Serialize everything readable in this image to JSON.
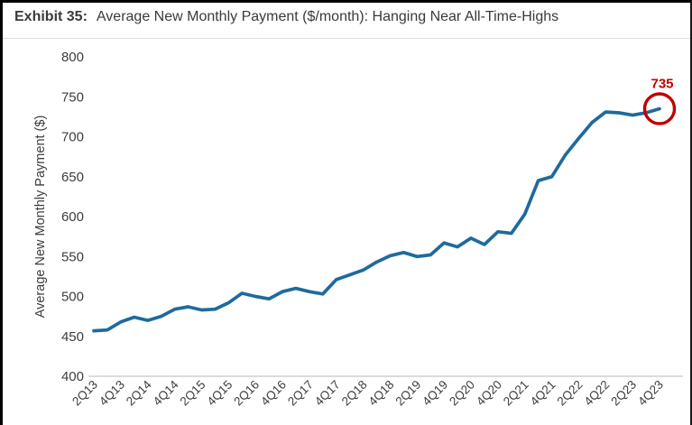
{
  "header": {
    "exhibit_label": "Exhibit 35:",
    "title_text": "Average New Monthly Payment ($/month): Hanging Near All-Time-Highs"
  },
  "colors": {
    "line": "#1e6a9e",
    "annotation_red": "#c00000",
    "axis_line": "#cfcfcf",
    "tick_text": "#3d3d3d"
  },
  "chart_data": {
    "type": "line",
    "title": "Average New Monthly Payment ($/month): Hanging Near All-Time-Highs",
    "xlabel": "",
    "ylabel": "Average New Monthly Payment ($)",
    "ylim": [
      400,
      800
    ],
    "grid": false,
    "legend": "none",
    "y_ticks": [
      400,
      450,
      500,
      550,
      600,
      650,
      700,
      750,
      800
    ],
    "x_tick_labels": [
      "2Q13",
      "4Q13",
      "2Q14",
      "4Q14",
      "2Q15",
      "4Q15",
      "2Q16",
      "4Q16",
      "2Q17",
      "4Q17",
      "2Q18",
      "4Q18",
      "2Q19",
      "4Q19",
      "2Q20",
      "4Q20",
      "2Q21",
      "4Q21",
      "2Q22",
      "4Q22",
      "2Q23",
      "4Q23"
    ],
    "categories": [
      "2Q13",
      "3Q13",
      "4Q13",
      "1Q14",
      "2Q14",
      "3Q14",
      "4Q14",
      "1Q15",
      "2Q15",
      "3Q15",
      "4Q15",
      "1Q16",
      "2Q16",
      "3Q16",
      "4Q16",
      "1Q17",
      "2Q17",
      "3Q17",
      "4Q17",
      "1Q18",
      "2Q18",
      "3Q18",
      "4Q18",
      "1Q19",
      "2Q19",
      "3Q19",
      "4Q19",
      "1Q20",
      "2Q20",
      "3Q20",
      "4Q20",
      "1Q21",
      "2Q21",
      "3Q21",
      "4Q21",
      "1Q22",
      "2Q22",
      "3Q22",
      "4Q22",
      "1Q23",
      "2Q23",
      "3Q23",
      "4Q23"
    ],
    "series": [
      {
        "name": "Average New Monthly Payment ($/month)",
        "values": [
          457,
          458,
          468,
          474,
          470,
          475,
          484,
          487,
          483,
          484,
          492,
          504,
          500,
          497,
          506,
          510,
          506,
          503,
          521,
          527,
          533,
          543,
          551,
          555,
          550,
          552,
          567,
          562,
          573,
          565,
          581,
          579,
          603,
          645,
          650,
          677,
          698,
          718,
          731,
          730,
          727,
          730,
          735
        ]
      }
    ],
    "annotation": {
      "type": "circle-highlight",
      "label": "735",
      "value": 735,
      "category": "4Q23"
    }
  }
}
